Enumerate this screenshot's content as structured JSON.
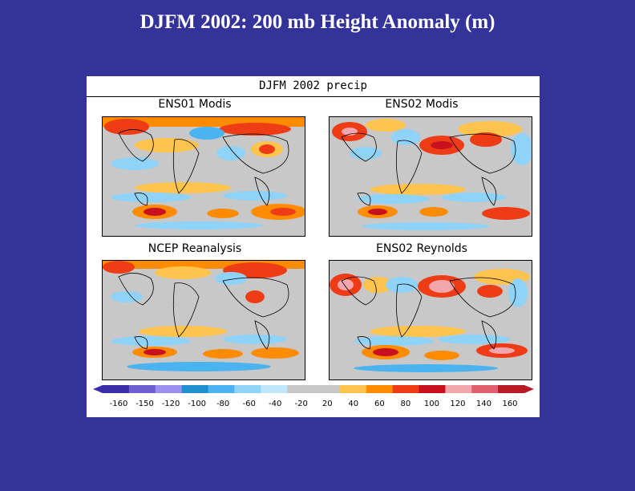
{
  "slide": {
    "title": "DJFM 2002: 200 mb Height Anomaly (m)"
  },
  "figure": {
    "title": "DJFM  2002  precip",
    "panels": [
      {
        "label": "ENS01  Modis"
      },
      {
        "label": "ENS02  Modis"
      },
      {
        "label": "NCEP  Reanalysis"
      },
      {
        "label": "ENS02  Reynolds"
      }
    ]
  },
  "colorbar": {
    "labels": [
      "-160",
      "-150",
      "-120",
      "-100",
      "-80",
      "-60",
      "-40",
      "-20",
      "20",
      "40",
      "60",
      "80",
      "100",
      "120",
      "140",
      "160"
    ],
    "colors": [
      "#3a2ea8",
      "#6d5fd0",
      "#9b8ff0",
      "#1f8fd0",
      "#4bb3f0",
      "#8fd3f8",
      "#bfe6fb",
      "#c8c8c8",
      "#c8c8c8",
      "#ffc44d",
      "#ff8c00",
      "#ee3d16",
      "#c8101e",
      "#f4a6ad",
      "#e06070",
      "#b81a26"
    ]
  }
}
